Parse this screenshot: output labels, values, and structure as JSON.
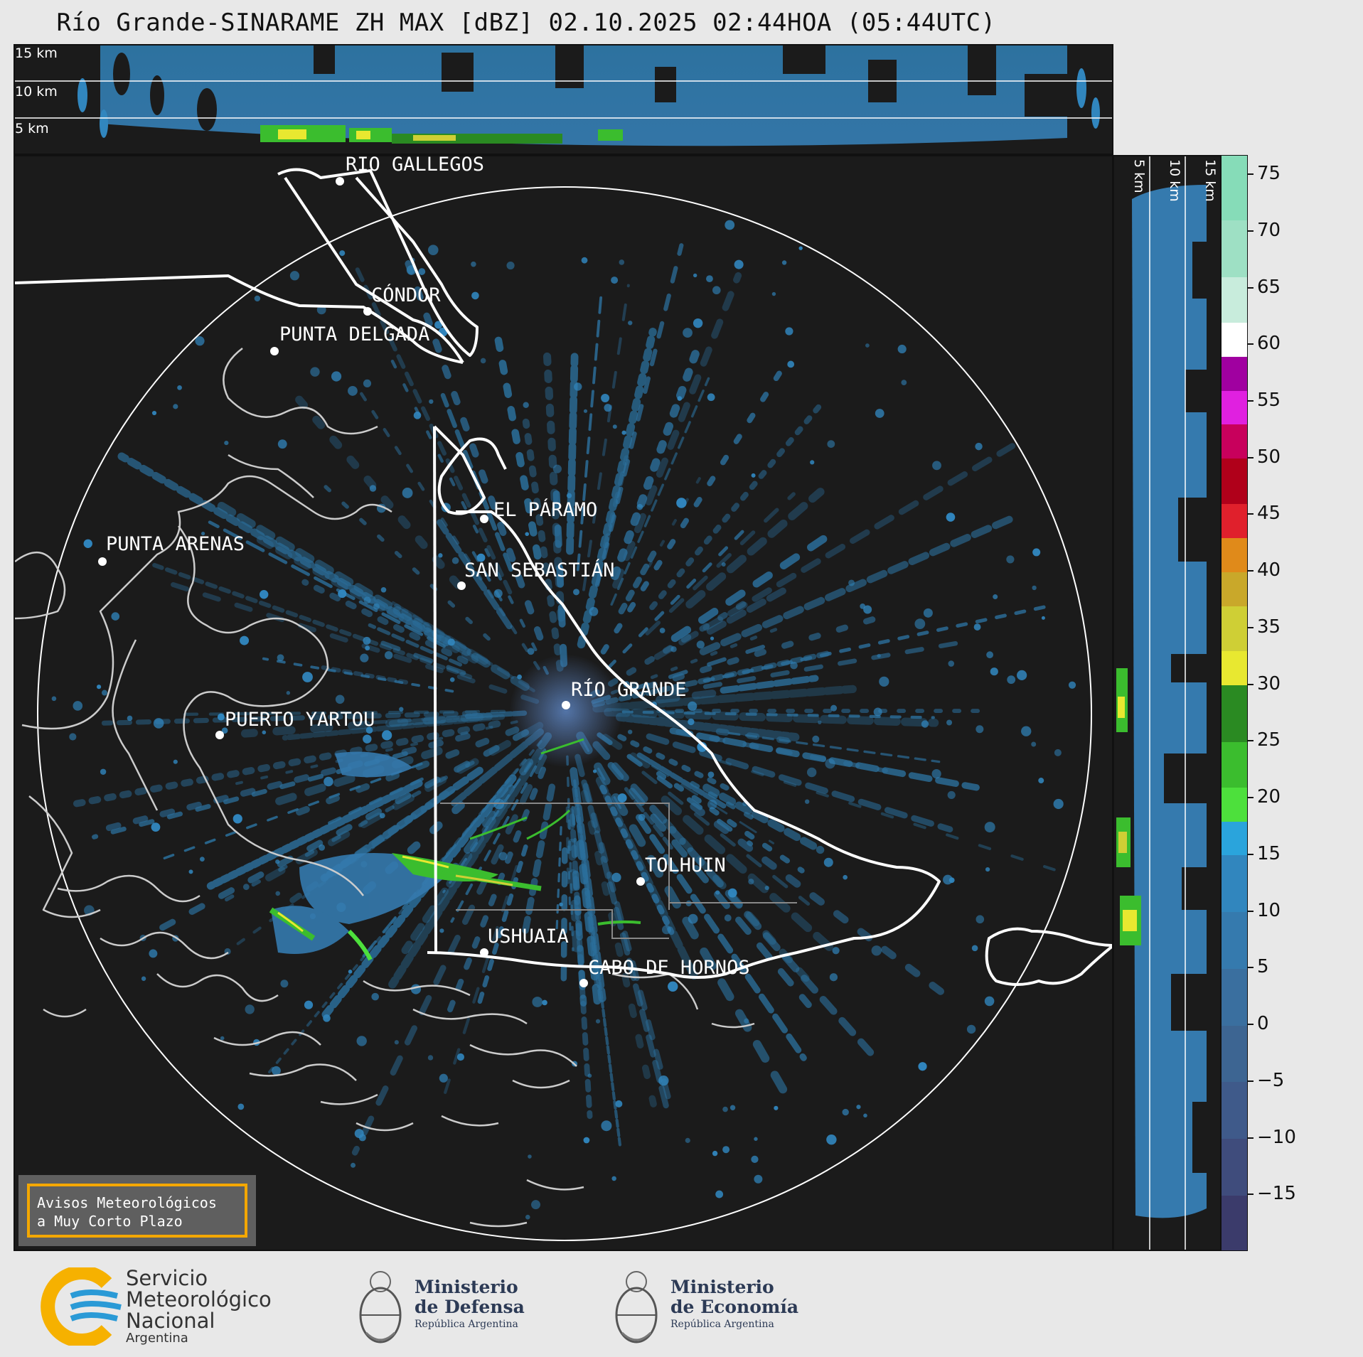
{
  "title": "Río Grande-SINARAME ZH MAX [dBZ] 02.10.2025 02:44HOA (05:44UTC)",
  "top_panel": {
    "height_labels": [
      "15 km",
      "10 km",
      "5 km"
    ]
  },
  "side_panel": {
    "height_labels": [
      "5 km",
      "10 km",
      "15 km"
    ]
  },
  "cities": [
    {
      "name": "RÍO GALLEGOS"
    },
    {
      "name": "CÓNDOR"
    },
    {
      "name": "PUNTA DELGADA"
    },
    {
      "name": "EL PÁRAMO"
    },
    {
      "name": "PUNTA ARENAS"
    },
    {
      "name": "SAN SEBASTIÁN"
    },
    {
      "name": "RÍO GRANDE"
    },
    {
      "name": "PUERTO YARTOU"
    },
    {
      "name": "TOLHUIN"
    },
    {
      "name": "USHUAIA"
    },
    {
      "name": "CABO DE HORNOS"
    }
  ],
  "colorbar": {
    "unit": "dBZ",
    "min": -20,
    "max": 76.7,
    "tick_labels": [
      "75",
      "70",
      "65",
      "60",
      "55",
      "50",
      "45",
      "40",
      "35",
      "30",
      "25",
      "20",
      "15",
      "10",
      "5",
      "0",
      "−5",
      "−10",
      "−15"
    ],
    "tick_values": [
      75,
      70,
      65,
      60,
      55,
      50,
      45,
      40,
      35,
      30,
      25,
      20,
      15,
      10,
      5,
      0,
      -5,
      -10,
      -15
    ],
    "bands": [
      {
        "from": -20,
        "to": -15,
        "color": "#3b3b6b"
      },
      {
        "from": -15,
        "to": -10,
        "color": "#3f4c7c"
      },
      {
        "from": -10,
        "to": -5,
        "color": "#3f5a8a"
      },
      {
        "from": -5,
        "to": 0,
        "color": "#3d6592"
      },
      {
        "from": 0,
        "to": 5,
        "color": "#3a6f9f"
      },
      {
        "from": 5,
        "to": 10,
        "color": "#357aae"
      },
      {
        "from": 10,
        "to": 15,
        "color": "#3186be"
      },
      {
        "from": 15,
        "to": 18,
        "color": "#2aa4dc"
      },
      {
        "from": 18,
        "to": 21,
        "color": "#4de03c"
      },
      {
        "from": 21,
        "to": 25,
        "color": "#3bbd2e"
      },
      {
        "from": 25,
        "to": 30,
        "color": "#2a8a22"
      },
      {
        "from": 30,
        "to": 33,
        "color": "#e8e830"
      },
      {
        "from": 33,
        "to": 37,
        "color": "#cfcf35"
      },
      {
        "from": 37,
        "to": 40,
        "color": "#c9a82a"
      },
      {
        "from": 40,
        "to": 43,
        "color": "#e08a1a"
      },
      {
        "from": 43,
        "to": 46,
        "color": "#e0202c"
      },
      {
        "from": 46,
        "to": 50,
        "color": "#b0001a"
      },
      {
        "from": 50,
        "to": 53,
        "color": "#c8005c"
      },
      {
        "from": 53,
        "to": 56,
        "color": "#e020e0"
      },
      {
        "from": 56,
        "to": 59,
        "color": "#a000a0"
      },
      {
        "from": 59,
        "to": 62,
        "color": "#ffffff"
      },
      {
        "from": 62,
        "to": 66,
        "color": "#c8ecdc"
      },
      {
        "from": 66,
        "to": 71,
        "color": "#9ee0c4"
      },
      {
        "from": 71,
        "to": 76.7,
        "color": "#86dcb8"
      }
    ]
  },
  "warning": {
    "line1": "Avisos Meteorológicos",
    "line2": "a Muy Corto Plazo"
  },
  "logos": {
    "smn": {
      "line1": "Servicio",
      "line2": "Meteorológico",
      "line3": "Nacional",
      "line4": "Argentina"
    },
    "defensa": {
      "line1": "Ministerio",
      "line2": "de Defensa",
      "line3": "República Argentina"
    },
    "economia": {
      "line1": "Ministerio",
      "line2": "de Economía",
      "line3": "República Argentina"
    }
  },
  "colors": {
    "panel_bg": "#1b1b1b",
    "echo_blue": "#3186be",
    "echo_green": "#3bbd2e",
    "echo_yellow": "#e8e830",
    "smn_blue": "#2a9ad6",
    "smn_yellow": "#f6b100"
  }
}
